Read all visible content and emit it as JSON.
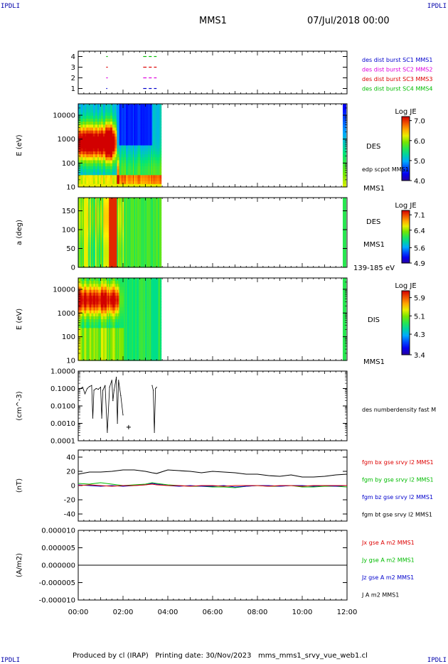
{
  "corner_labels": {
    "tl": "IPDLI",
    "tr": "IPDLI",
    "bl": "IPDLI",
    "br": "IPDLI"
  },
  "header": {
    "title": "MMS1",
    "datetime": "07/Jul/2018 00:00"
  },
  "footer": "Produced by cl (IRAP)   Printing date: 30/Nov/2023   mms_mms1_srvy_vue_web1.cl",
  "time_axis": {
    "ticks": [
      "00:00",
      "02:00",
      "04:00",
      "06:00",
      "08:00",
      "10:00",
      "12:00"
    ],
    "range_hours": [
      0,
      12
    ]
  },
  "colors": {
    "blue": "#0000cc",
    "magenta": "#dd00dd",
    "red": "#dd0000",
    "green": "#00bb00",
    "black": "#000000"
  },
  "chart_data": [
    {
      "type": "scatter",
      "panel": "availability",
      "yticks": [
        "1",
        "2",
        "3",
        "4"
      ],
      "ylim": [
        0.5,
        4.5
      ],
      "legend": [
        {
          "name": "des dist burst SC1 MMS1",
          "color": "#0000cc"
        },
        {
          "name": "des dist burst SC2 MMS2",
          "color": "#dd00dd"
        },
        {
          "name": "des dist burst SC3 MMS3",
          "color": "#dd0000"
        },
        {
          "name": "des dist burst SC4 MMS4",
          "color": "#00bb00"
        }
      ],
      "series": [
        {
          "sc": 4,
          "color": "#00bb00",
          "segments": [
            [
              1.25,
              1.32
            ],
            [
              2.9,
              3.05
            ],
            [
              3.15,
              3.28
            ],
            [
              3.38,
              3.5
            ]
          ]
        },
        {
          "sc": 3,
          "color": "#dd0000",
          "segments": [
            [
              1.25,
              1.32
            ],
            [
              2.9,
              3.05
            ],
            [
              3.15,
              3.28
            ],
            [
              3.38,
              3.5
            ]
          ]
        },
        {
          "sc": 2,
          "color": "#dd00dd",
          "segments": [
            [
              1.25,
              1.32
            ],
            [
              2.9,
              3.05
            ],
            [
              3.15,
              3.28
            ],
            [
              3.38,
              3.5
            ]
          ]
        },
        {
          "sc": 1,
          "color": "#0000cc",
          "segments": [
            [
              1.25,
              1.3
            ],
            [
              2.9,
              3.05
            ],
            [
              3.15,
              3.28
            ],
            [
              3.38,
              3.5
            ]
          ]
        }
      ]
    },
    {
      "type": "heatmap",
      "panel": "des-energy",
      "ylabel": "E (eV)",
      "yscale": "log",
      "yticks": [
        "10",
        "100",
        "1000",
        "10000"
      ],
      "ylim": [
        10,
        30000
      ],
      "right_labels": [
        "DES",
        "edp scpot MMS1",
        "MMS1"
      ],
      "colorbar": {
        "title": "Log JE",
        "ticks": [
          "7.0",
          "6.0",
          "5.0",
          "4.0"
        ],
        "range": [
          4.0,
          7.2
        ]
      },
      "data_range_hours": [
        0,
        3.7
      ]
    },
    {
      "type": "heatmap",
      "panel": "des-pitch",
      "ylabel": "a (deg)",
      "yticks": [
        "0",
        "50",
        "100",
        "150"
      ],
      "ylim": [
        0,
        185
      ],
      "right_labels": [
        "DES",
        "MMS1",
        "139-185 eV"
      ],
      "colorbar": {
        "title": "Log JE",
        "ticks": [
          "7.1",
          "6.4",
          "5.6",
          "4.9"
        ],
        "range": [
          4.9,
          7.3
        ]
      },
      "data_range_hours": [
        0,
        3.7
      ]
    },
    {
      "type": "heatmap",
      "panel": "dis-energy",
      "ylabel": "E (eV)",
      "yscale": "log",
      "yticks": [
        "10",
        "100",
        "1000",
        "10000"
      ],
      "ylim": [
        10,
        30000
      ],
      "right_labels": [
        "DIS",
        "MMS1"
      ],
      "colorbar": {
        "title": "Log JE",
        "ticks": [
          "5.9",
          "5.1",
          "4.3",
          "3.4"
        ],
        "range": [
          3.4,
          6.2
        ]
      },
      "data_range_hours": [
        0,
        3.7
      ]
    },
    {
      "type": "line",
      "panel": "density",
      "ylabel": "(cm^-3)",
      "yscale": "log",
      "yticks": [
        "0.0001",
        "0.0010",
        "0.0100",
        "0.1000",
        "1.0000"
      ],
      "ylim": [
        0.0001,
        1.0
      ],
      "legend": [
        {
          "name": "des numberdensity fast M",
          "color": "#000000"
        }
      ],
      "x": [
        0.1,
        0.2,
        0.3,
        0.4,
        0.5,
        0.6,
        0.65,
        0.7,
        0.8,
        0.9,
        1.0,
        1.05,
        1.1,
        1.2,
        1.3,
        1.4,
        1.5,
        1.55,
        1.6,
        1.7,
        1.75,
        1.8,
        1.9,
        2.0,
        3.3,
        3.35,
        3.4,
        3.45,
        3.5
      ],
      "y": [
        0.1,
        0.12,
        0.05,
        0.1,
        0.13,
        0.15,
        0.002,
        0.08,
        0.1,
        0.09,
        0.12,
        0.002,
        0.08,
        0.15,
        0.0003,
        0.12,
        0.3,
        0.02,
        0.08,
        0.45,
        0.001,
        0.3,
        0.04,
        0.003,
        0.15,
        0.08,
        0.0003,
        0.1,
        0.12
      ],
      "marker": {
        "x": 2.25,
        "y": 0.0006
      }
    },
    {
      "type": "line",
      "panel": "magnetic-field",
      "ylabel": "(nT)",
      "yticks": [
        "-40",
        "-20",
        "0",
        "20",
        "40"
      ],
      "ylim": [
        -50,
        50
      ],
      "legend": [
        {
          "name": "fgm bx gse srvy l2 MMS1",
          "color": "#dd0000"
        },
        {
          "name": "fgm by gse srvy l2 MMS1",
          "color": "#00bb00"
        },
        {
          "name": "fgm bz gse srvy l2 MMS1",
          "color": "#0000cc"
        },
        {
          "name": "fgm bt gse srvy l2 MMS1",
          "color": "#000000"
        }
      ],
      "x": [
        0,
        0.5,
        1,
        1.5,
        2,
        2.5,
        3,
        3.3,
        3.5,
        4,
        4.5,
        5,
        5.5,
        6,
        6.5,
        7,
        7.5,
        8,
        8.5,
        9,
        9.5,
        10,
        10.5,
        11,
        11.5,
        12
      ],
      "series": [
        {
          "name": "bt",
          "color": "#000000",
          "values": [
            16,
            19,
            19,
            20,
            22,
            22,
            20,
            18,
            17,
            22,
            21,
            20,
            18,
            20,
            19,
            18,
            16,
            16,
            14,
            13,
            15,
            12,
            12,
            13,
            15,
            16
          ]
        },
        {
          "name": "by",
          "color": "#00bb00",
          "values": [
            3,
            2,
            4,
            2,
            0,
            1,
            2,
            4,
            3,
            1,
            0,
            -1,
            -1,
            -2,
            -2,
            -3,
            -1,
            0,
            -1,
            -1,
            0,
            -2,
            -2,
            -1,
            -1,
            -2
          ]
        },
        {
          "name": "bz",
          "color": "#0000cc",
          "values": [
            1,
            0,
            -1,
            0,
            -1,
            0,
            1,
            3,
            2,
            0,
            -1,
            0,
            -1,
            -1,
            0,
            -2,
            -1,
            0,
            0,
            -1,
            0,
            0,
            -1,
            0,
            -1,
            0
          ]
        },
        {
          "name": "bx",
          "color": "#dd0000",
          "values": [
            0,
            1,
            0,
            -1,
            0,
            0,
            1,
            2,
            1,
            0,
            0,
            -1,
            0,
            0,
            -1,
            0,
            0,
            0,
            -1,
            0,
            0,
            -1,
            0,
            0,
            0,
            0
          ]
        }
      ]
    },
    {
      "type": "line",
      "panel": "current-density",
      "ylabel": "(A/m2)",
      "yticks": [
        "-0.000010",
        "-0.000005",
        "0.000000",
        "0.000005",
        "0.000010"
      ],
      "ylim": [
        -1e-05,
        1e-05
      ],
      "legend": [
        {
          "name": "Jx gse A m2 MMS1",
          "color": "#dd0000"
        },
        {
          "name": "Jy gse A m2 MMS1",
          "color": "#00bb00"
        },
        {
          "name": "Jz gse A m2 MMS1",
          "color": "#0000cc"
        },
        {
          "name": "J A m2 MMS1",
          "color": "#000000"
        }
      ],
      "x": [
        0,
        12
      ],
      "series": [
        {
          "name": "J",
          "color": "#000000",
          "values": [
            0,
            0
          ]
        }
      ]
    }
  ]
}
